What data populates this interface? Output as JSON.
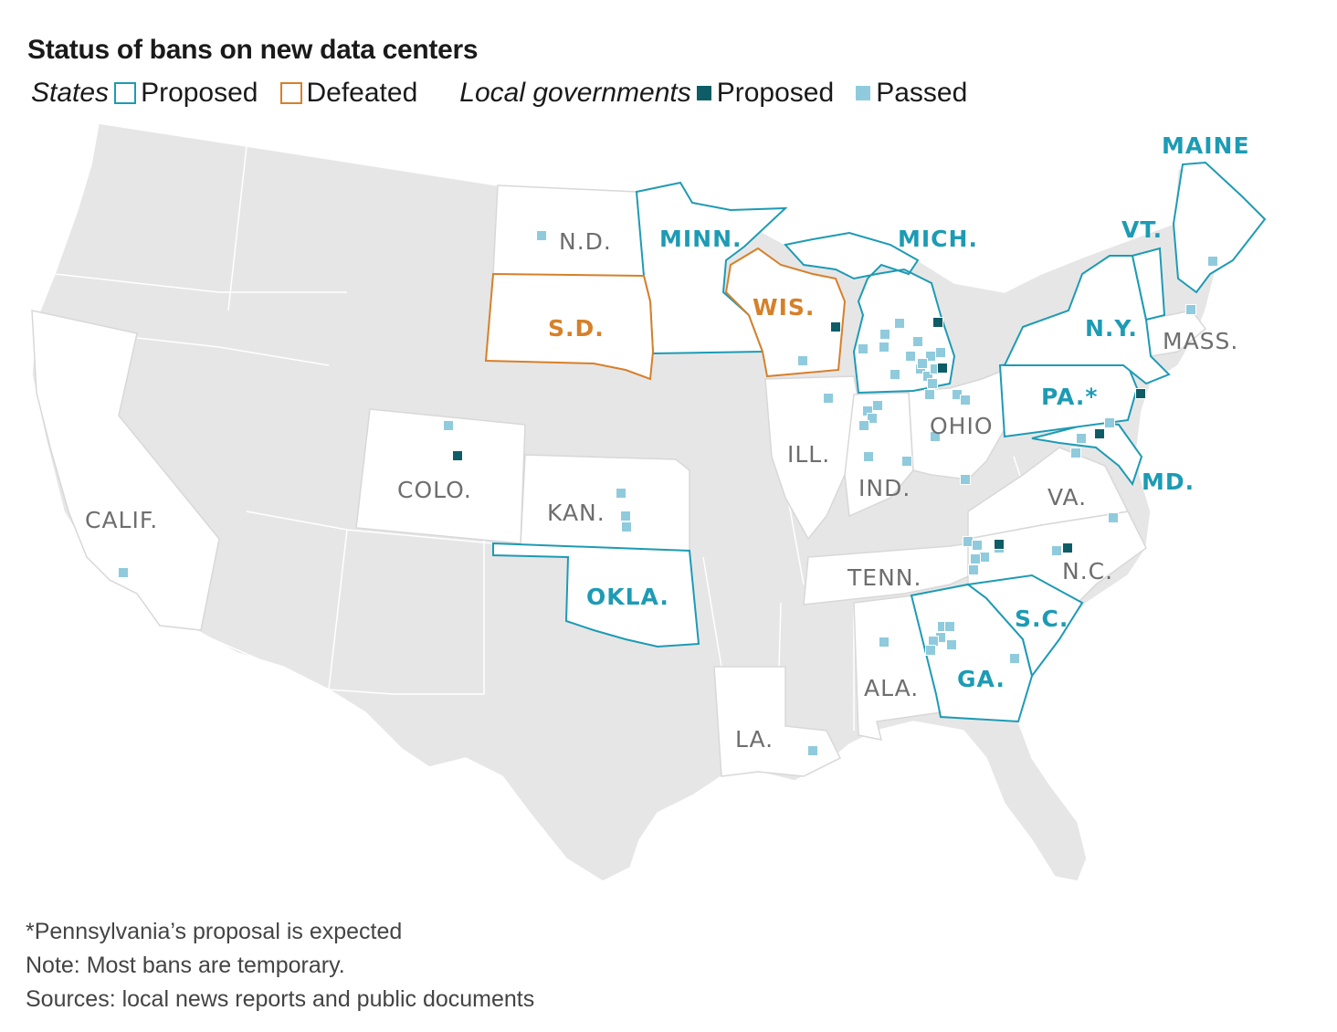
{
  "title": "Status of bans on new data centers",
  "legend": {
    "states_label": "States",
    "states_proposed": "Proposed",
    "states_defeated": "Defeated",
    "local_label": "Local governments",
    "local_proposed": "Proposed",
    "local_passed": "Passed"
  },
  "colors": {
    "state_proposed": "#1d9bb4",
    "state_defeated": "#d6802a",
    "local_proposed": "#0e5c66",
    "local_passed": "#8fcbdc",
    "land_gray": "#e6e6e6",
    "white_state": "#ffffff"
  },
  "states": {
    "calif": "CALIF.",
    "colo": "COLO.",
    "kan": "KAN.",
    "nd": "N.D.",
    "sd": "S.D.",
    "minn": "MINN.",
    "wis": "WIS.",
    "mich": "MICH.",
    "ill": "ILL.",
    "ind": "IND.",
    "ohio": "OHIO",
    "okla": "OKLA.",
    "tenn": "TENN.",
    "nc": "N.C.",
    "sc": "S.C.",
    "ga": "GA.",
    "ala": "ALA.",
    "la": "LA.",
    "va": "VA.",
    "md": "MD.",
    "pa": "PA.*",
    "ny": "N.Y.",
    "vt": "VT.",
    "maine": "MAINE",
    "mass": "MASS."
  },
  "notes": {
    "asterisk": "*Pennsylvania’s proposal is expected",
    "note": "Note: Most bans are temporary.",
    "sources": "Sources: local news reports and public documents"
  }
}
